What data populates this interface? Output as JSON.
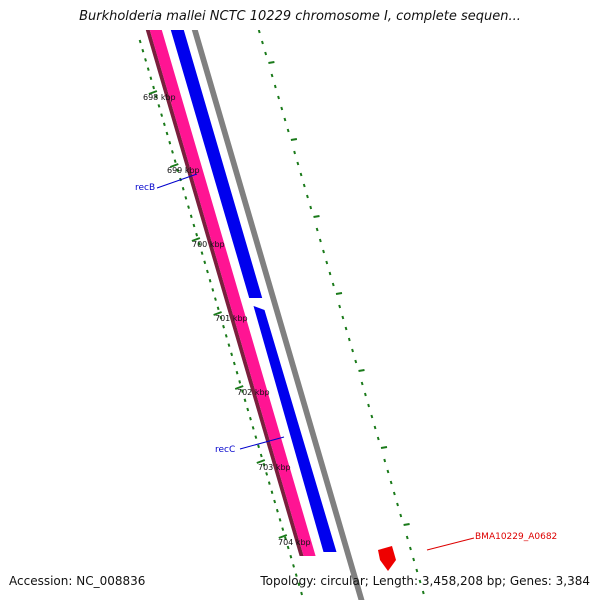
{
  "title": "Burkholderia mallei NCTC 10229 chromosome I, complete sequen...",
  "accession": "Accession: NC_008836",
  "summary": "Topology: circular; Length: 3,458,208 bp; Genes: 3,384",
  "colors": {
    "outer_strand": "#808080",
    "forward_gene": "#0000ee",
    "reverse_gene": "#ff1493",
    "reverse_gene_dark": "#7a1f3d",
    "ticks": "#1a7a1a",
    "gene_label_known": "#0000cc",
    "gene_label_hypothetical": "#dd0000",
    "highlight_feature": "#ee0000"
  },
  "ticks": [
    {
      "label": "698 kbp"
    },
    {
      "label": "699 kbp"
    },
    {
      "label": "700 kbp"
    },
    {
      "label": "701 kbp"
    },
    {
      "label": "702 kbp"
    },
    {
      "label": "703 kbp"
    },
    {
      "label": "704 kbp"
    }
  ],
  "genes": [
    {
      "label": "recB",
      "type": "known"
    },
    {
      "label": "recC",
      "type": "known"
    },
    {
      "label": "BMA10229_A0682",
      "type": "hypothetical"
    }
  ]
}
